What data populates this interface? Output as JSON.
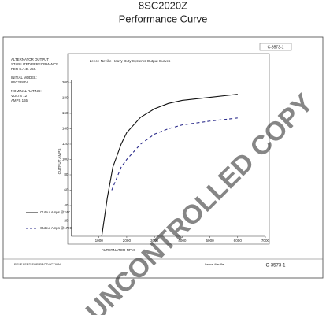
{
  "chart_data": {
    "type": "line",
    "title": "8SC2020Z",
    "subtitle": "Performance Curve",
    "chart_title": "Leece-Neville Heavy Duty Systems Output Curves",
    "xlabel": "ALTERNATOR RPM",
    "ylabel": "OUTPUT AMPS",
    "xlim": [
      0,
      7000
    ],
    "xticks": [
      1000,
      2000,
      3000,
      4000,
      5000,
      6000,
      7000
    ],
    "ylim": [
      0,
      200
    ],
    "yticks": [
      20,
      40,
      60,
      80,
      100,
      120,
      140,
      160,
      180,
      200
    ],
    "series": [
      {
        "name": "Output Amps @24C",
        "color": "#111111",
        "dashed": false,
        "x": [
          1100,
          1300,
          1500,
          1800,
          2000,
          2500,
          3000,
          3500,
          4000,
          5000,
          6000
        ],
        "values": [
          0,
          50,
          90,
          120,
          135,
          155,
          166,
          173,
          177,
          181,
          185
        ]
      },
      {
        "name": "Output Amps @170C",
        "color": "#2a2a8a",
        "dashed": true,
        "x": [
          1460,
          1800,
          2000,
          2500,
          3000,
          3500,
          4000,
          5000,
          6000
        ],
        "values": [
          60,
          90,
          100,
          120,
          133,
          140,
          145,
          150,
          154
        ]
      }
    ],
    "side_notes": [
      "ALTERNATOR OUTPUT",
      "STABILIZED PERFORMANCE",
      "PER S.A.E. J56.",
      "INITIAL MODEL:",
      "8SC2282V",
      "NOMINAL RATING:",
      "VOLTS 12",
      "AMPS 165"
    ],
    "doc_number": "C-3573-1",
    "footer": [
      "RELEASED FOR PRODUCTION",
      "Leece-Neville",
      "C-3573-1"
    ],
    "watermark": "UNCONTROLLED COPY"
  }
}
